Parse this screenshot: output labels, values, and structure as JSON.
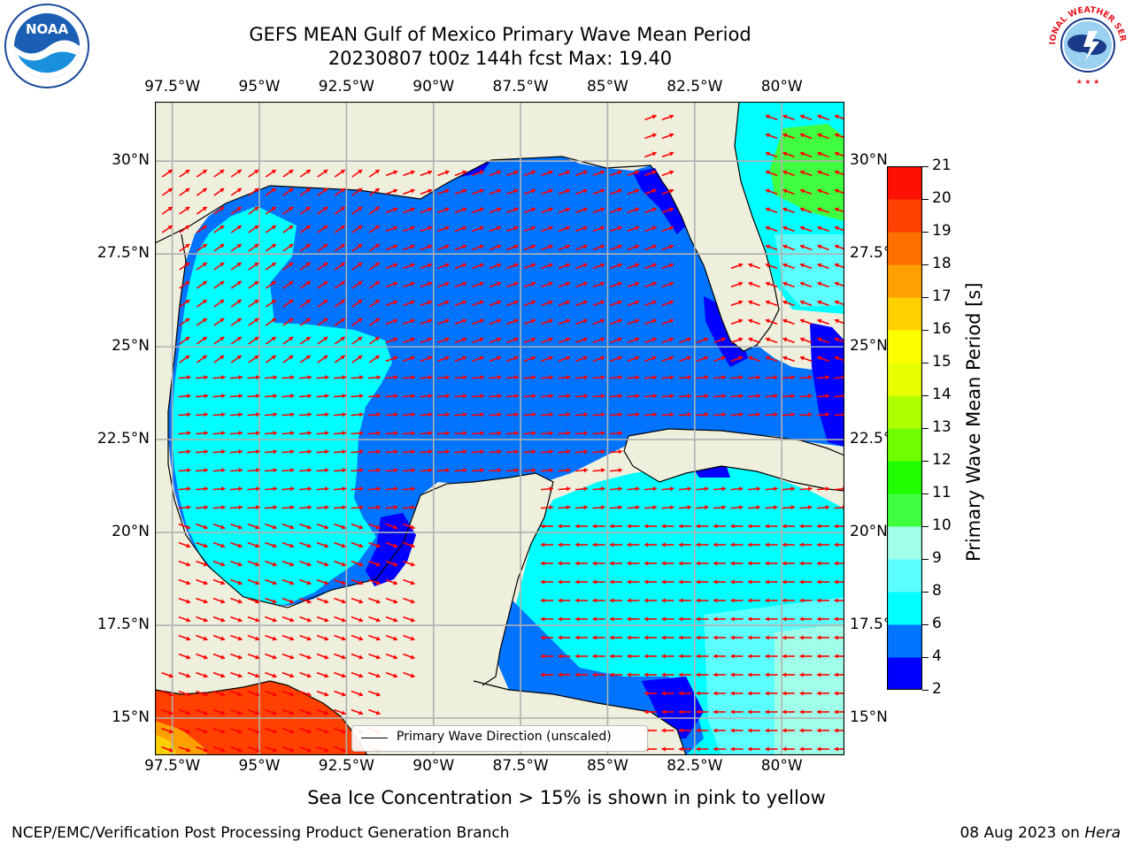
{
  "title": {
    "line1": "GEFS MEAN Gulf of Mexico Primary Wave Mean Period",
    "line2": "20230807 t00z 144h fcst   Max: 19.40"
  },
  "map": {
    "lon_labels": [
      "97.5°W",
      "95°W",
      "92.5°W",
      "90°W",
      "87.5°W",
      "85°W",
      "82.5°W",
      "80°W"
    ],
    "lat_labels": [
      "30°N",
      "27.5°N",
      "25°N",
      "22.5°N",
      "20°N",
      "17.5°N",
      "15°N"
    ],
    "lon_values": [
      -97.5,
      -95,
      -92.5,
      -90,
      -87.5,
      -85,
      -82.5,
      -80
    ],
    "lat_values": [
      30,
      27.5,
      25,
      22.5,
      20,
      17.5,
      15
    ],
    "extent": {
      "lon_min": -98,
      "lon_max": -78.2,
      "lat_min": 14,
      "lat_max": 31.6
    },
    "land_color": "#efefdd",
    "grid": true
  },
  "legend": {
    "label": "Primary Wave Direction (unscaled)",
    "arrow_color": "#ff0000"
  },
  "colorbar": {
    "label": "Primary Wave Mean Period [s]",
    "ticks": [
      "2",
      "4",
      "6",
      "8",
      "9",
      "10",
      "11",
      "12",
      "13",
      "14",
      "15",
      "16",
      "17",
      "18",
      "19",
      "20",
      "21"
    ],
    "colors": [
      "#0000ff",
      "#0073ff",
      "#00ffff",
      "#5cffff",
      "#a0ffe8",
      "#40ff40",
      "#20ff00",
      "#70ff00",
      "#b0ff00",
      "#e8ff00",
      "#ffff00",
      "#ffd000",
      "#ffa000",
      "#ff7000",
      "#ff4000",
      "#ff1000"
    ]
  },
  "footer": {
    "note": "Sea Ice Concentration > 15% is shown in pink to yellow",
    "credit": "NCEP/EMC/Verification Post Processing Product Generation Branch",
    "date": "08 Aug 2023",
    "on_word": "on",
    "host": "Hera"
  },
  "logos": {
    "left": {
      "name": "noaa-logo",
      "text": "NOAA"
    },
    "right": {
      "name": "nws-logo",
      "text": "NATIONAL WEATHER SERVICE"
    }
  }
}
